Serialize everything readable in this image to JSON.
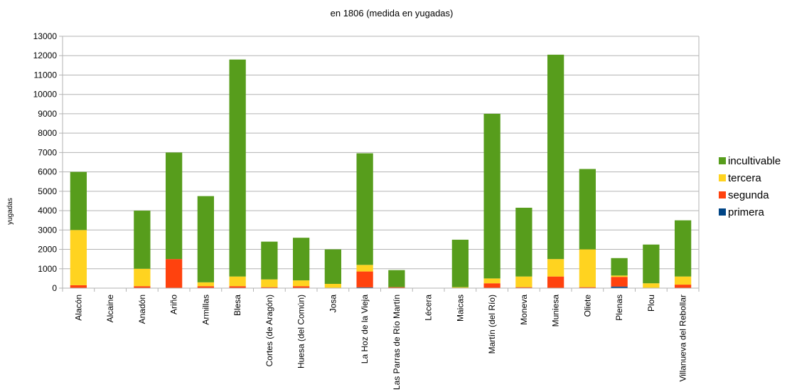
{
  "chart_data": {
    "type": "bar",
    "stacked": true,
    "title": "en 1806 (medida en yugadas)",
    "ylabel": "yugadas",
    "xlabel": "",
    "ylim": [
      0,
      13000
    ],
    "ytick_step": 1000,
    "grid": true,
    "legend_position": "right",
    "categories": [
      "Alacón",
      "Alcaine",
      "Anadón",
      "Ariño",
      "Armillas",
      "Blesa",
      "Cortes (de Aragón)",
      "Huesa (del Común)",
      "Josa",
      "La Hoz de la Vieja",
      "Las Parras de Río Martín",
      "Lécera",
      "Maicas",
      "Martín (del Río)",
      "Moneva",
      "Muniesa",
      "Oliete",
      "Plenas",
      "Plou",
      "Villanueva del Rebollar"
    ],
    "series": [
      {
        "name": "primera",
        "color": "#004586",
        "values": [
          0,
          0,
          0,
          0,
          0,
          0,
          0,
          0,
          0,
          40,
          0,
          0,
          0,
          0,
          0,
          0,
          0,
          80,
          0,
          0
        ]
      },
      {
        "name": "segunda",
        "color": "#ff420e",
        "values": [
          150,
          0,
          100,
          1500,
          100,
          100,
          50,
          100,
          20,
          820,
          50,
          0,
          10,
          250,
          50,
          600,
          50,
          500,
          20,
          180
        ]
      },
      {
        "name": "tercera",
        "color": "#ffd320",
        "values": [
          2850,
          0,
          900,
          0,
          200,
          500,
          400,
          300,
          200,
          340,
          0,
          0,
          40,
          250,
          550,
          900,
          1950,
          70,
          230,
          420
        ]
      },
      {
        "name": "incultivable",
        "color": "#579d1c",
        "values": [
          3000,
          0,
          3000,
          5500,
          4450,
          11200,
          1950,
          2200,
          1780,
          5760,
          880,
          0,
          2450,
          8500,
          3550,
          10550,
          4150,
          900,
          2000,
          2900
        ]
      }
    ]
  }
}
